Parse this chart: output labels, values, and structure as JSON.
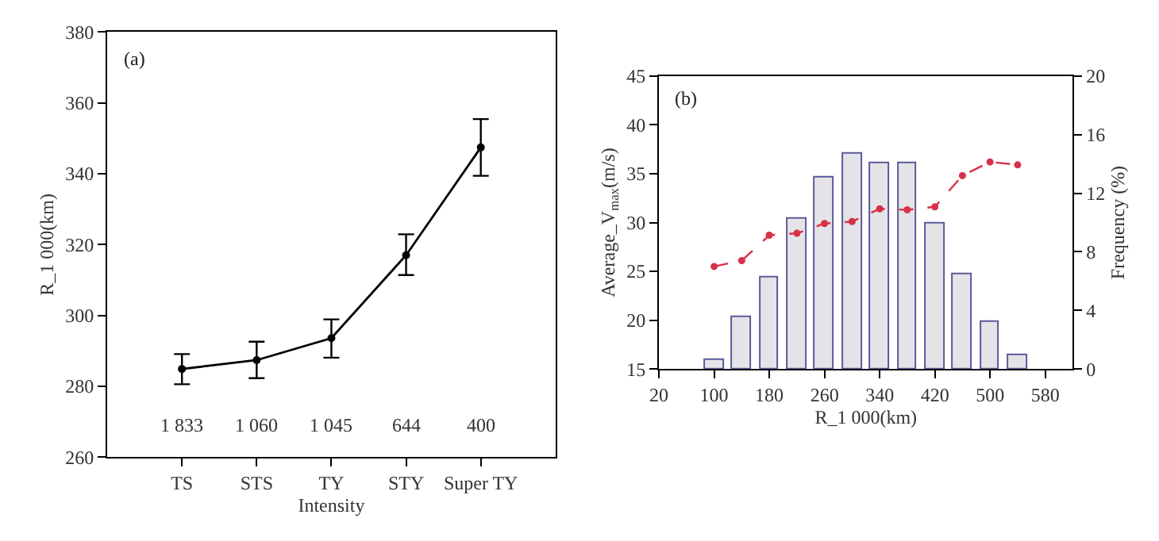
{
  "chart_data": [
    {
      "type": "line",
      "categories": [
        "TS",
        "STS",
        "TY",
        "STY",
        "Super TY"
      ],
      "xlabel": "Intensity",
      "ylabel": "R_1 000(km)",
      "series": [
        {
          "color": "#000000",
          "values": [
            284.9,
            287.4,
            293.6,
            317.0,
            347.4
          ],
          "errors": [
            [
              280.6,
              289.1
            ],
            [
              282.3,
              292.6
            ],
            [
              288.1,
              298.9
            ],
            [
              311.4,
              322.9
            ],
            [
              339.4,
              355.4
            ]
          ]
        }
      ],
      "ylim": [
        260,
        380
      ],
      "yticks": [
        260,
        280,
        300,
        320,
        340,
        360,
        380
      ],
      "marker": "circle",
      "line_style": "solid",
      "annotations": [
        "(a)",
        "1 833",
        "1 060",
        "1 045",
        "644",
        "400"
      ]
    },
    {
      "type": "bar",
      "x": [
        100,
        140,
        180,
        220,
        260,
        300,
        340,
        380,
        420,
        460,
        500,
        540
      ],
      "xlabel": "R_1 000(km)",
      "ylabel": "Average_V$_{max}$(m/s)",
      "y2label": "Frequency (%)",
      "series": [
        {
          "type": "bar",
          "axis": "y2",
          "color": "#e4e4e8",
          "values": [
            0.6,
            3.6,
            6.2,
            10.3,
            13.1,
            14.7,
            14.0,
            14.0,
            9.9,
            6.5,
            3.2,
            1.0
          ]
        },
        {
          "type": "line",
          "color": "#d8304a",
          "marker": "circle",
          "line_style": "dashed",
          "values": [
            25.5,
            26.1,
            28.7,
            28.9,
            29.9,
            30.1,
            31.4,
            31.3,
            31.6,
            34.8,
            36.2,
            35.9
          ]
        }
      ],
      "xlim": [
        20,
        620
      ],
      "xticks": [
        20,
        100,
        180,
        260,
        340,
        420,
        500,
        580
      ],
      "ylim": [
        15,
        45
      ],
      "yticks": [
        15,
        20,
        25,
        30,
        35,
        40,
        45
      ],
      "y2lim": [
        0,
        20
      ],
      "y2ticks": [
        0,
        4,
        8,
        12,
        16,
        20
      ],
      "annotations": [
        "(b)"
      ]
    }
  ]
}
